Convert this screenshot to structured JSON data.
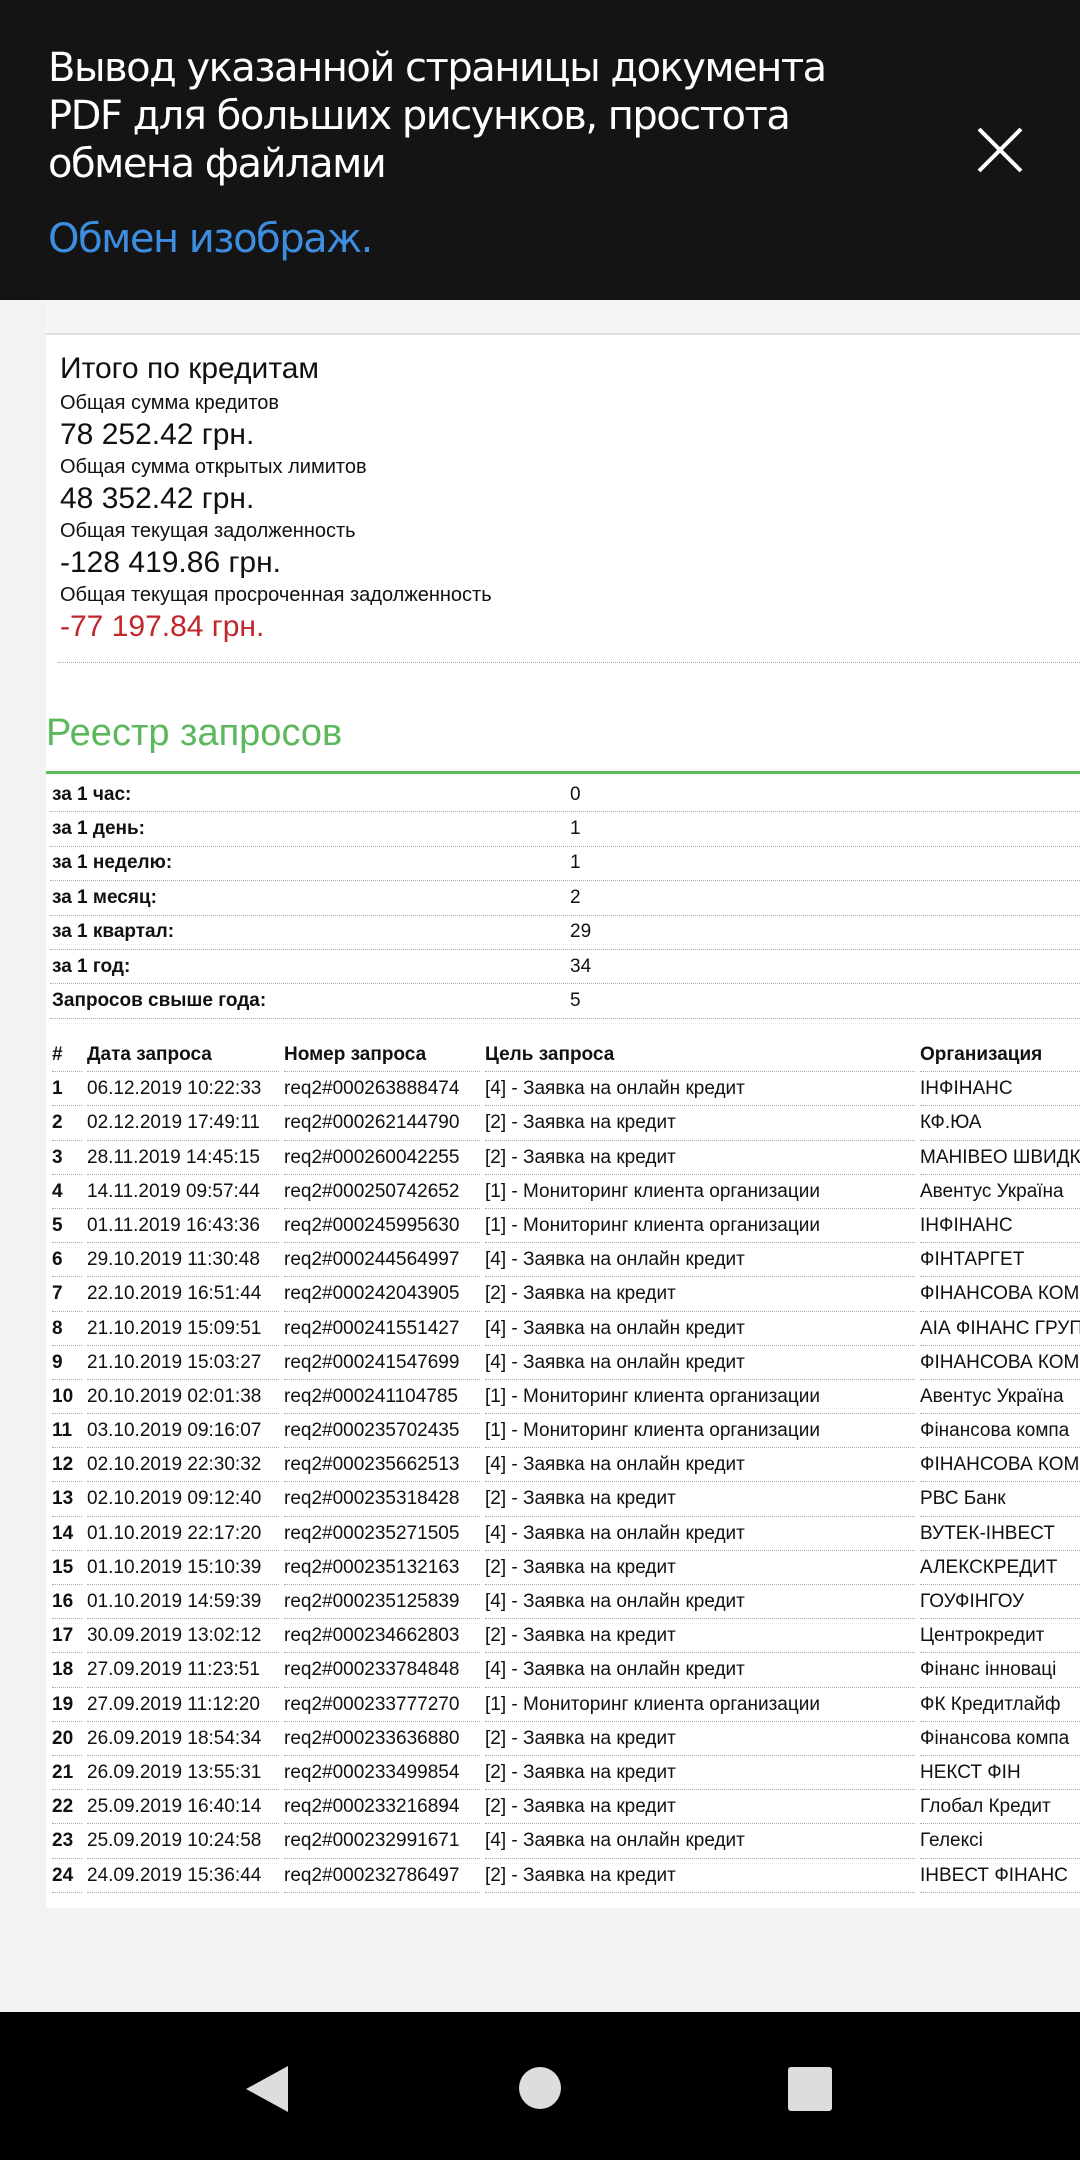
{
  "overlay": {
    "message": "Вывод указанной страницы документа PDF для больших рисунков, простота обмена файлами",
    "link": "Обмен изображ.",
    "close_icon": "close-icon"
  },
  "totals": {
    "title": "Итого по кредитам",
    "items": [
      {
        "label": "Общая сумма кредитов",
        "value": "78 252.42 грн."
      },
      {
        "label": "Общая сумма открытых лимитов",
        "value": "48 352.42 грн."
      },
      {
        "label": "Общая текущая задолженность",
        "value": "-128 419.86 грн."
      },
      {
        "label": "Общая текущая просроченная задолженность",
        "value": "-77 197.84 грн."
      }
    ],
    "negative_color": "#c0262a"
  },
  "registry": {
    "title": "Реестр запросов",
    "accent": "#5cb85c",
    "summary": [
      {
        "label": "за 1 час:",
        "value": "0"
      },
      {
        "label": "за 1 день:",
        "value": "1"
      },
      {
        "label": "за 1 неделю:",
        "value": "1"
      },
      {
        "label": "за 1 месяц:",
        "value": "2"
      },
      {
        "label": "за 1 квартал:",
        "value": "29"
      },
      {
        "label": "за 1 год:",
        "value": "34"
      },
      {
        "label": "Запросов свыше года:",
        "value": "5"
      }
    ],
    "columns": [
      "#",
      "Дата запроса",
      "Номер запроса",
      "Цель запроса",
      "Организация"
    ],
    "rows": [
      [
        "1",
        "06.12.2019 10:22:33",
        "req2#000263888474",
        "[4] - Заявка на онлайн кредит",
        "ІНФІНАНС"
      ],
      [
        "2",
        "02.12.2019 17:49:11",
        "req2#000262144790",
        "[2] - Заявка на кредит",
        "КФ.ЮА"
      ],
      [
        "3",
        "28.11.2019 14:45:15",
        "req2#000260042255",
        "[2] - Заявка на кредит",
        "МАНІВЕО ШВИДК"
      ],
      [
        "4",
        "14.11.2019 09:57:44",
        "req2#000250742652",
        "[1] - Мониторинг клиента организации",
        "Авентус Україна"
      ],
      [
        "5",
        "01.11.2019 16:43:36",
        "req2#000245995630",
        "[1] - Мониторинг клиента организации",
        "ІНФІНАНС"
      ],
      [
        "6",
        "29.10.2019 11:30:48",
        "req2#000244564997",
        "[4] - Заявка на онлайн кредит",
        "ФІНТАРГЕТ"
      ],
      [
        "7",
        "22.10.2019 16:51:44",
        "req2#000242043905",
        "[2] - Заявка на кредит",
        "ФІНАНСОВА КОМ"
      ],
      [
        "8",
        "21.10.2019 15:09:51",
        "req2#000241551427",
        "[4] - Заявка на онлайн кредит",
        "АІА ФІНАНС ГРУП"
      ],
      [
        "9",
        "21.10.2019 15:03:27",
        "req2#000241547699",
        "[4] - Заявка на онлайн кредит",
        "ФІНАНСОВА КОМ"
      ],
      [
        "10",
        "20.10.2019 02:01:38",
        "req2#000241104785",
        "[1] - Мониторинг клиента организации",
        "Авентус Україна"
      ],
      [
        "11",
        "03.10.2019 09:16:07",
        "req2#000235702435",
        "[1] - Мониторинг клиента организации",
        "Фінансова компа"
      ],
      [
        "12",
        "02.10.2019 22:30:32",
        "req2#000235662513",
        "[4] - Заявка на онлайн кредит",
        "ФІНАНСОВА КОМ"
      ],
      [
        "13",
        "02.10.2019 09:12:40",
        "req2#000235318428",
        "[2] - Заявка на кредит",
        "РВС Банк"
      ],
      [
        "14",
        "01.10.2019 22:17:20",
        "req2#000235271505",
        "[4] - Заявка на онлайн кредит",
        "ВУТЕК-ІНВЕСТ"
      ],
      [
        "15",
        "01.10.2019 15:10:39",
        "req2#000235132163",
        "[2] - Заявка на кредит",
        "АЛЕКСКРЕДИТ"
      ],
      [
        "16",
        "01.10.2019 14:59:39",
        "req2#000235125839",
        "[4] - Заявка на онлайн кредит",
        "ГОУФІНГОУ"
      ],
      [
        "17",
        "30.09.2019 13:02:12",
        "req2#000234662803",
        "[2] - Заявка на кредит",
        "Центрокредит"
      ],
      [
        "18",
        "27.09.2019 11:23:51",
        "req2#000233784848",
        "[4] - Заявка на онлайн кредит",
        "Фінанс інноваці"
      ],
      [
        "19",
        "27.09.2019 11:12:20",
        "req2#000233777270",
        "[1] - Мониторинг клиента организации",
        "ФК Кредитлайф"
      ],
      [
        "20",
        "26.09.2019 18:54:34",
        "req2#000233636880",
        "[2] - Заявка на кредит",
        "Фінансова компа"
      ],
      [
        "21",
        "26.09.2019 13:55:31",
        "req2#000233499854",
        "[2] - Заявка на кредит",
        "НЕКСТ ФІН"
      ],
      [
        "22",
        "25.09.2019 16:40:14",
        "req2#000233216894",
        "[2] - Заявка на кредит",
        "Глобал Кредит"
      ],
      [
        "23",
        "25.09.2019 10:24:58",
        "req2#000232991671",
        "[4] - Заявка на онлайн кредит",
        "Гелексі"
      ],
      [
        "24",
        "24.09.2019 15:36:44",
        "req2#000232786497",
        "[2] - Заявка на кредит",
        "ІНВЕСТ ФІНАНС"
      ]
    ]
  },
  "navbar": {
    "icons": [
      "back-icon",
      "home-icon",
      "recents-icon"
    ]
  }
}
